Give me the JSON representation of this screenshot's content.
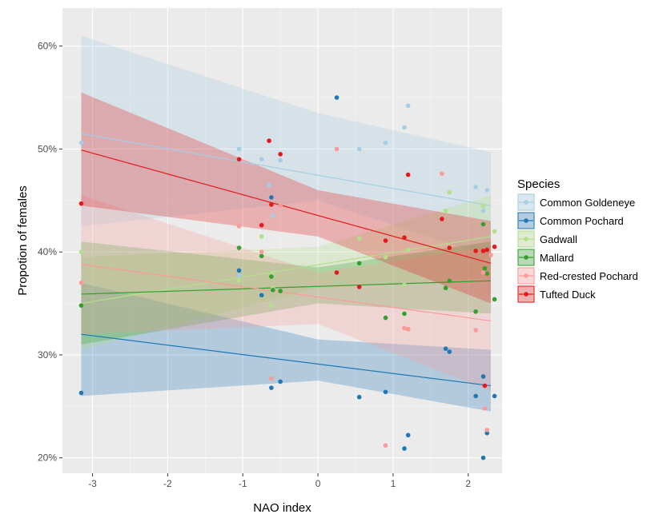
{
  "chart_data": {
    "type": "scatter",
    "xlabel": "NAO index",
    "ylabel": "Propotion of females",
    "xlim": [
      -3.4,
      2.45
    ],
    "ylim": [
      0.185,
      0.637
    ],
    "x_ticks": [
      -3,
      -2,
      -1,
      0,
      1,
      2
    ],
    "x_tick_labels": [
      "-3",
      "-2",
      "-1",
      "0",
      "1",
      "2"
    ],
    "y_ticks": [
      0.2,
      0.3,
      0.4,
      0.5,
      0.6
    ],
    "y_tick_labels": [
      "20%",
      "30%",
      "40%",
      "50%",
      "60%"
    ],
    "grid": true,
    "legend": {
      "title": "Species",
      "placement": "right"
    },
    "series": [
      {
        "name": "Common Goldeneye",
        "color": "#a6cee3",
        "points": [
          [
            -3.15,
            0.506
          ],
          [
            -1.05,
            0.5
          ],
          [
            -0.75,
            0.49
          ],
          [
            -0.65,
            0.465
          ],
          [
            -0.5,
            0.489
          ],
          [
            0.55,
            0.5
          ],
          [
            0.9,
            0.506
          ],
          [
            1.15,
            0.521
          ],
          [
            1.2,
            0.542
          ],
          [
            2.1,
            0.463
          ],
          [
            2.2,
            0.44
          ],
          [
            2.25,
            0.46
          ],
          [
            -1.05,
            0.377
          ],
          [
            -0.6,
            0.435
          ]
        ],
        "fit": {
          "x1": -3.15,
          "y1": 0.515,
          "x2": 2.3,
          "y2": 0.445
        },
        "band": {
          "x": [
            -3.15,
            0,
            2.3
          ],
          "lo": [
            0.425,
            0.45,
            0.395
          ],
          "hi": [
            0.61,
            0.535,
            0.497
          ]
        }
      },
      {
        "name": "Common Pochard",
        "color": "#1f78b4",
        "points": [
          [
            -3.15,
            0.263
          ],
          [
            -1.05,
            0.382
          ],
          [
            -0.75,
            0.358
          ],
          [
            -0.62,
            0.453
          ],
          [
            -0.62,
            0.268
          ],
          [
            -0.5,
            0.274
          ],
          [
            0.25,
            0.55
          ],
          [
            0.55,
            0.259
          ],
          [
            0.9,
            0.264
          ],
          [
            1.15,
            0.209
          ],
          [
            1.2,
            0.222
          ],
          [
            1.7,
            0.306
          ],
          [
            1.75,
            0.303
          ],
          [
            2.1,
            0.26
          ],
          [
            2.2,
            0.279
          ],
          [
            2.2,
            0.2
          ],
          [
            2.25,
            0.224
          ],
          [
            2.35,
            0.26
          ]
        ],
        "fit": {
          "x1": -3.15,
          "y1": 0.32,
          "x2": 2.3,
          "y2": 0.27
        },
        "band": {
          "x": [
            -3.15,
            0,
            2.3
          ],
          "lo": [
            0.26,
            0.275,
            0.245
          ],
          "hi": [
            0.37,
            0.315,
            0.305
          ]
        }
      },
      {
        "name": "Gadwall",
        "color": "#b2df8a",
        "points": [
          [
            -3.15,
            0.4
          ],
          [
            -1.05,
            0.372
          ],
          [
            -0.75,
            0.415
          ],
          [
            -0.62,
            0.348
          ],
          [
            -0.6,
            0.365
          ],
          [
            0.55,
            0.413
          ],
          [
            0.9,
            0.395
          ],
          [
            1.15,
            0.368
          ],
          [
            1.2,
            0.402
          ],
          [
            1.7,
            0.44
          ],
          [
            1.75,
            0.458
          ],
          [
            2.2,
            0.445
          ],
          [
            2.35,
            0.42
          ],
          [
            -0.6,
            0.38
          ]
        ],
        "fit": {
          "x1": -3.15,
          "y1": 0.35,
          "x2": 2.3,
          "y2": 0.415
        },
        "band": {
          "x": [
            -3.15,
            0,
            2.3
          ],
          "lo": [
            0.305,
            0.365,
            0.375
          ],
          "hi": [
            0.395,
            0.405,
            0.455
          ]
        }
      },
      {
        "name": "Mallard",
        "color": "#33a02c",
        "points": [
          [
            -3.15,
            0.348
          ],
          [
            -1.05,
            0.404
          ],
          [
            -0.75,
            0.396
          ],
          [
            -0.62,
            0.376
          ],
          [
            -0.6,
            0.363
          ],
          [
            -0.5,
            0.362
          ],
          [
            0.55,
            0.389
          ],
          [
            0.9,
            0.336
          ],
          [
            1.15,
            0.34
          ],
          [
            1.2,
            0.325
          ],
          [
            1.7,
            0.365
          ],
          [
            1.75,
            0.372
          ],
          [
            2.1,
            0.342
          ],
          [
            2.2,
            0.427
          ],
          [
            2.22,
            0.384
          ],
          [
            2.25,
            0.379
          ],
          [
            2.35,
            0.354
          ]
        ],
        "fit": {
          "x1": -3.15,
          "y1": 0.359,
          "x2": 2.3,
          "y2": 0.372
        },
        "band": {
          "x": [
            -3.15,
            0,
            2.3
          ],
          "lo": [
            0.31,
            0.35,
            0.34
          ],
          "hi": [
            0.41,
            0.385,
            0.41
          ]
        }
      },
      {
        "name": "Red-crested Pochard",
        "color": "#fb9a99",
        "points": [
          [
            -3.15,
            0.37
          ],
          [
            -1.05,
            0.425
          ],
          [
            -0.75,
            0.4
          ],
          [
            -0.62,
            0.277
          ],
          [
            -0.5,
            0.445
          ],
          [
            0.25,
            0.5
          ],
          [
            0.9,
            0.212
          ],
          [
            1.15,
            0.326
          ],
          [
            1.2,
            0.325
          ],
          [
            1.65,
            0.476
          ],
          [
            2.1,
            0.324
          ],
          [
            2.2,
            0.38
          ],
          [
            2.22,
            0.248
          ],
          [
            2.25,
            0.227
          ],
          [
            2.3,
            0.397
          ]
        ],
        "fit": {
          "x1": -3.15,
          "y1": 0.388,
          "x2": 2.3,
          "y2": 0.333
        },
        "band": {
          "x": [
            -3.15,
            0,
            2.3
          ],
          "lo": [
            0.32,
            0.33,
            0.265
          ],
          "hi": [
            0.455,
            0.38,
            0.405
          ]
        }
      },
      {
        "name": "Tufted Duck",
        "color": "#e31a1c",
        "points": [
          [
            -3.15,
            0.447
          ],
          [
            -1.05,
            0.49
          ],
          [
            -0.75,
            0.426
          ],
          [
            -0.65,
            0.508
          ],
          [
            -0.62,
            0.446
          ],
          [
            -0.5,
            0.495
          ],
          [
            0.25,
            0.38
          ],
          [
            0.55,
            0.366
          ],
          [
            0.9,
            0.411
          ],
          [
            1.15,
            0.414
          ],
          [
            1.2,
            0.475
          ],
          [
            1.65,
            0.432
          ],
          [
            1.75,
            0.404
          ],
          [
            2.1,
            0.401
          ],
          [
            2.2,
            0.401
          ],
          [
            2.25,
            0.402
          ],
          [
            2.35,
            0.405
          ],
          [
            2.22,
            0.27
          ]
        ],
        "fit": {
          "x1": -3.15,
          "y1": 0.499,
          "x2": 2.3,
          "y2": 0.389
        },
        "band": {
          "x": [
            -3.15,
            0,
            2.3
          ],
          "lo": [
            0.445,
            0.415,
            0.35
          ],
          "hi": [
            0.555,
            0.46,
            0.43
          ]
        }
      }
    ]
  }
}
